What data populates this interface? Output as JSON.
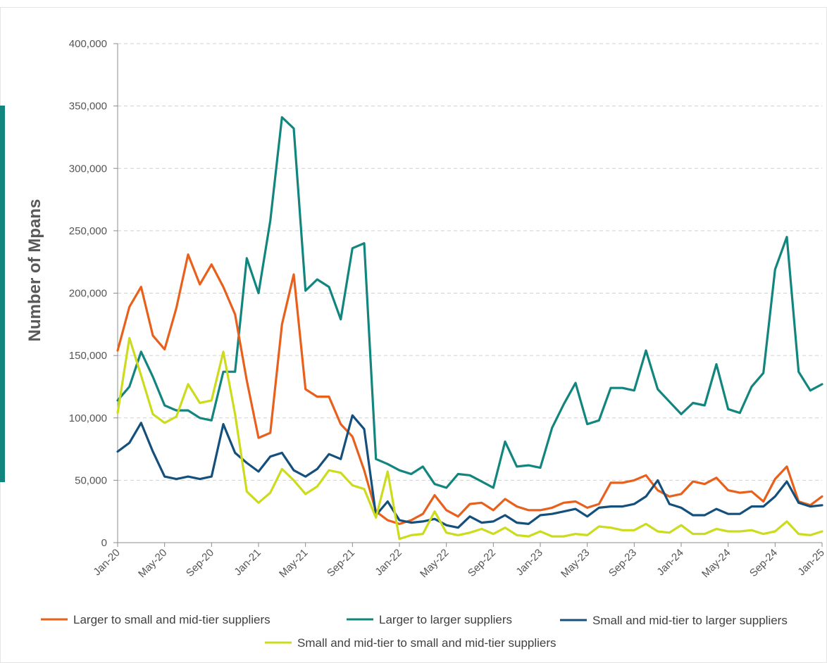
{
  "chart_data": {
    "type": "line",
    "title": "",
    "xlabel": "",
    "ylabel": "Number of Mpans",
    "ylim": [
      0,
      400000
    ],
    "yticks": [
      0,
      50000,
      100000,
      150000,
      200000,
      250000,
      300000,
      350000,
      400000
    ],
    "ytick_labels": [
      "0",
      "50,000",
      "100,000",
      "150,000",
      "200,000",
      "250,000",
      "300,000",
      "350,000",
      "400,000"
    ],
    "grid": true,
    "legend_position": "bottom",
    "x": [
      "Jan-20",
      "Feb-20",
      "Mar-20",
      "Apr-20",
      "May-20",
      "Jun-20",
      "Jul-20",
      "Aug-20",
      "Sep-20",
      "Oct-20",
      "Nov-20",
      "Dec-20",
      "Jan-21",
      "Feb-21",
      "Mar-21",
      "Apr-21",
      "May-21",
      "Jun-21",
      "Jul-21",
      "Aug-21",
      "Sep-21",
      "Oct-21",
      "Nov-21",
      "Dec-21",
      "Jan-22",
      "Feb-22",
      "Mar-22",
      "Apr-22",
      "May-22",
      "Jun-22",
      "Jul-22",
      "Aug-22",
      "Sep-22",
      "Oct-22",
      "Nov-22",
      "Dec-22",
      "Jan-23",
      "Feb-23",
      "Mar-23",
      "Apr-23",
      "May-23",
      "Jun-23",
      "Jul-23",
      "Aug-23",
      "Sep-23",
      "Oct-23",
      "Nov-23",
      "Dec-23",
      "Jan-24",
      "Feb-24",
      "Mar-24",
      "Apr-24",
      "May-24",
      "Jun-24",
      "Jul-24",
      "Aug-24",
      "Sep-24",
      "Oct-24",
      "Nov-24",
      "Dec-24",
      "Jan-25"
    ],
    "xtick_labels": [
      "Jan-20",
      "May-20",
      "Sep-20",
      "Jan-21",
      "May-21",
      "Sep-21",
      "Jan-22",
      "May-22",
      "Sep-22",
      "Jan-23",
      "May-23",
      "Sep-23",
      "Jan-24",
      "May-24",
      "Sep-24",
      "Jan-25"
    ],
    "series": [
      {
        "name": "Larger to small and mid-tier suppliers",
        "color": "#E8601C",
        "values": [
          154000,
          189000,
          205000,
          166000,
          155000,
          188000,
          231000,
          207000,
          223000,
          205000,
          183000,
          130000,
          84000,
          88000,
          175000,
          215000,
          123000,
          117000,
          117000,
          95000,
          85000,
          58000,
          25000,
          18000,
          15000,
          18000,
          23000,
          38000,
          26000,
          21000,
          31000,
          32000,
          26000,
          35000,
          29000,
          26000,
          26000,
          28000,
          32000,
          33000,
          28000,
          31000,
          48000,
          48000,
          50000,
          54000,
          42000,
          37000,
          39000,
          49000,
          47000,
          52000,
          42000,
          40000,
          41000,
          33000,
          51000,
          61000,
          33000,
          30000,
          37000
        ]
      },
      {
        "name": "Larger to larger suppliers",
        "color": "#12857E",
        "values": [
          114000,
          125000,
          153000,
          133000,
          110000,
          106000,
          106000,
          100000,
          98000,
          137000,
          137000,
          228000,
          200000,
          258000,
          341000,
          332000,
          202000,
          211000,
          205000,
          179000,
          236000,
          240000,
          67000,
          63000,
          58000,
          55000,
          61000,
          47000,
          44000,
          55000,
          54000,
          49000,
          44000,
          81000,
          61000,
          62000,
          60000,
          92000,
          111000,
          128000,
          95000,
          98000,
          124000,
          124000,
          122000,
          154000,
          123000,
          113000,
          103000,
          112000,
          110000,
          143000,
          107000,
          104000,
          125000,
          136000,
          219000,
          245000,
          137000,
          122000,
          127000
        ]
      },
      {
        "name": "Small and mid-tier to larger suppliers",
        "color": "#15507C",
        "values": [
          73000,
          80000,
          96000,
          73000,
          53000,
          51000,
          53000,
          51000,
          53000,
          95000,
          72000,
          64000,
          57000,
          69000,
          72000,
          58000,
          53000,
          59000,
          71000,
          67000,
          102000,
          91000,
          22000,
          33000,
          18000,
          16000,
          17000,
          19000,
          14000,
          12000,
          21000,
          16000,
          17000,
          22000,
          16000,
          15000,
          22000,
          23000,
          25000,
          27000,
          21000,
          28000,
          29000,
          29000,
          31000,
          37000,
          50000,
          31000,
          28000,
          22000,
          22000,
          27000,
          23000,
          23000,
          29000,
          29000,
          37000,
          49000,
          32000,
          29000,
          30000
        ]
      },
      {
        "name": "Small and mid-tier to small and mid-tier suppliers",
        "color": "#CCDB1C",
        "values": [
          104000,
          164000,
          134000,
          103000,
          96000,
          101000,
          127000,
          112000,
          114000,
          153000,
          103000,
          41000,
          32000,
          40000,
          59000,
          50000,
          39000,
          45000,
          58000,
          56000,
          46000,
          43000,
          20000,
          57000,
          3000,
          6000,
          7000,
          25000,
          8000,
          6000,
          8000,
          11000,
          7000,
          12000,
          6000,
          5000,
          9000,
          5000,
          5000,
          7000,
          6000,
          13000,
          12000,
          10000,
          10000,
          15000,
          9000,
          8000,
          14000,
          7000,
          7000,
          11000,
          9000,
          9000,
          10000,
          7000,
          9000,
          17000,
          7000,
          6000,
          9000
        ]
      }
    ]
  }
}
